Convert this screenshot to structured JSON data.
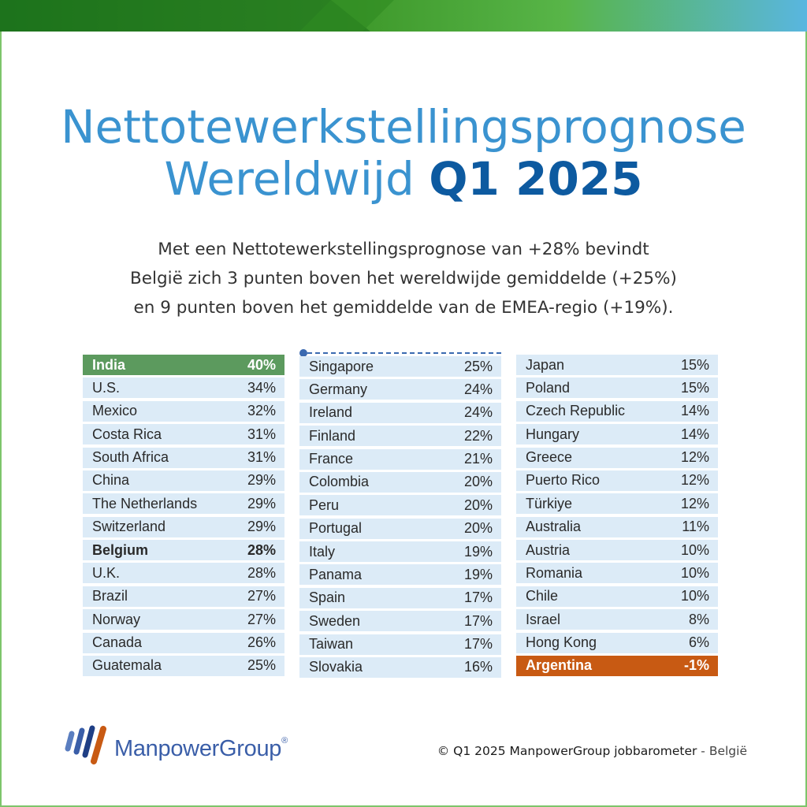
{
  "title": {
    "line1": "Nettotewerkstellingsprognose",
    "line2_normal": "Wereldwijd",
    "line2_bold": "Q1 2025"
  },
  "intro": {
    "line1": "Met een Nettotewerkstellingsprognose van +28% bevindt",
    "line2": "België zich 3 punten boven het wereldwijde gemiddelde (+25%)",
    "line3": "en 9 punten boven het gemiddelde van de EMEA-regio (+19%)."
  },
  "colors": {
    "title": "#3a93d0",
    "title_strong": "#0d5aa0",
    "row_bg": "#dcebf7",
    "highest": "#5c9a5e",
    "lowest": "#c85a13",
    "frame": "#7dc56b"
  },
  "columns": [
    [
      {
        "country": "India",
        "value": "40%",
        "style": "highest"
      },
      {
        "country": "U.S.",
        "value": "34%"
      },
      {
        "country": "Mexico",
        "value": "32%"
      },
      {
        "country": "Costa Rica",
        "value": "31%"
      },
      {
        "country": "South Africa",
        "value": "31%"
      },
      {
        "country": "China",
        "value": "29%"
      },
      {
        "country": "The Netherlands",
        "value": "29%"
      },
      {
        "country": "Switzerland",
        "value": "29%"
      },
      {
        "country": "Belgium",
        "value": "28%",
        "style": "bold"
      },
      {
        "country": "U.K.",
        "value": "28%"
      },
      {
        "country": "Brazil",
        "value": "27%"
      },
      {
        "country": "Norway",
        "value": "27%"
      },
      {
        "country": "Canada",
        "value": "26%"
      },
      {
        "country": "Guatemala",
        "value": "25%"
      }
    ],
    [
      {
        "country": "Singapore",
        "value": "25%"
      },
      {
        "country": "Germany",
        "value": "24%"
      },
      {
        "country": "Ireland",
        "value": "24%"
      },
      {
        "country": "Finland",
        "value": "22%"
      },
      {
        "country": "France",
        "value": "21%"
      },
      {
        "country": "Colombia",
        "value": "20%"
      },
      {
        "country": "Peru",
        "value": "20%"
      },
      {
        "country": "Portugal",
        "value": "20%"
      },
      {
        "country": "Italy",
        "value": "19%"
      },
      {
        "country": "Panama",
        "value": "19%"
      },
      {
        "country": "Spain",
        "value": "17%"
      },
      {
        "country": "Sweden",
        "value": "17%"
      },
      {
        "country": "Taiwan",
        "value": "17%"
      },
      {
        "country": "Slovakia",
        "value": "16%"
      }
    ],
    [
      {
        "country": "Japan",
        "value": "15%"
      },
      {
        "country": "Poland",
        "value": "15%"
      },
      {
        "country": "Czech Republic",
        "value": "14%"
      },
      {
        "country": "Hungary",
        "value": "14%"
      },
      {
        "country": "Greece",
        "value": "12%"
      },
      {
        "country": "Puerto Rico",
        "value": "12%"
      },
      {
        "country": "Türkiye",
        "value": "12%"
      },
      {
        "country": "Australia",
        "value": "11%"
      },
      {
        "country": "Austria",
        "value": "10%"
      },
      {
        "country": "Romania",
        "value": "10%"
      },
      {
        "country": "Chile",
        "value": "10%"
      },
      {
        "country": "Israel",
        "value": "8%"
      },
      {
        "country": "Hong Kong",
        "value": "6%"
      },
      {
        "country": "Argentina",
        "value": "-1%",
        "style": "lowest"
      }
    ]
  ],
  "logo": {
    "name": "ManpowerGroup",
    "mark": "®"
  },
  "credit": {
    "text": "© Q1 2025 ManpowerGroup jobbarometer",
    "separator": " - ",
    "region": "België"
  }
}
